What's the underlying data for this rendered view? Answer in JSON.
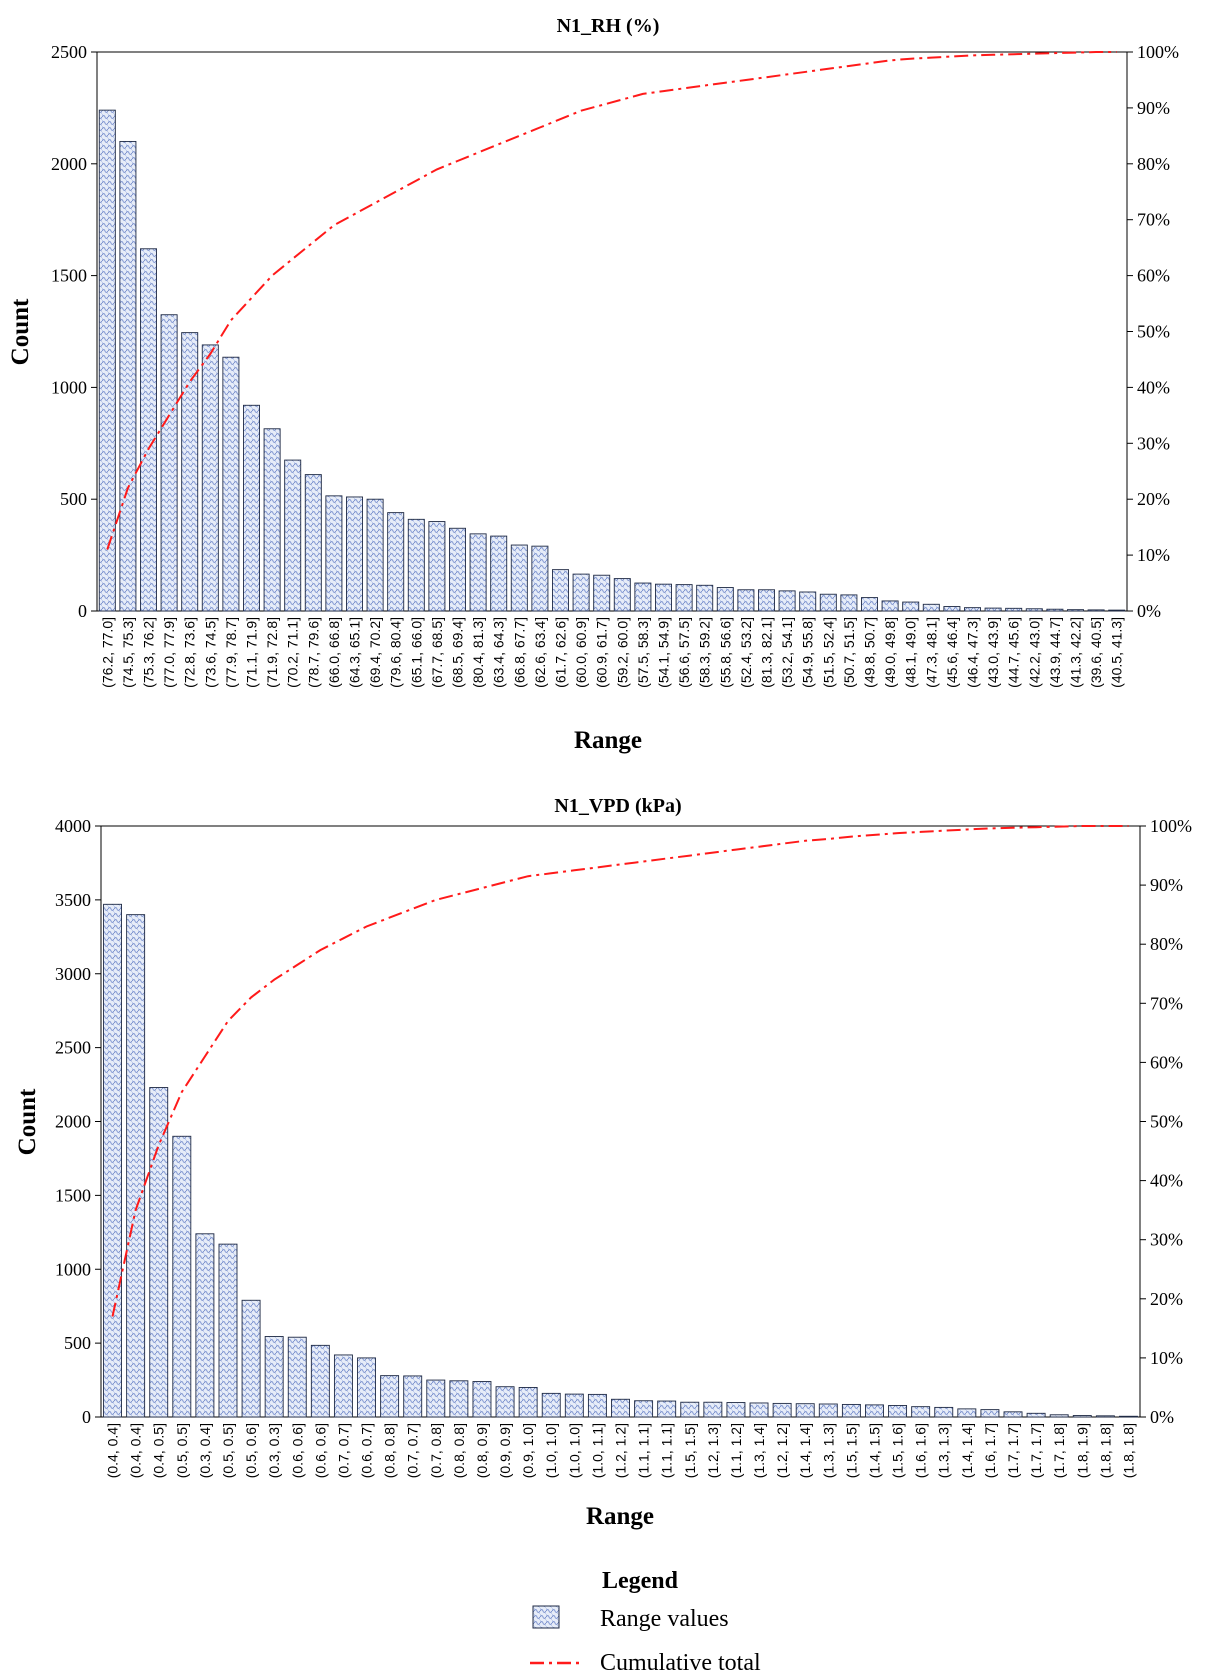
{
  "chart_data": [
    {
      "type": "bar",
      "title": "N1_RH (%)",
      "xlabel": "Range",
      "ylabel": "Count",
      "ylim": [
        0,
        2500
      ],
      "yticks": [
        "0",
        "500",
        "1000",
        "1500",
        "2000",
        "2500"
      ],
      "y2ticks": [
        "0%",
        "10%",
        "20%",
        "30%",
        "40%",
        "50%",
        "60%",
        "70%",
        "80%",
        "90%",
        "100%"
      ],
      "categories": [
        "(76.2, 77.0]",
        "(74.5, 75.3]",
        "(75.3, 76.2]",
        "(77.0, 77.9]",
        "(72.8, 73.6]",
        "(73.6, 74.5]",
        "(77.9, 78.7]",
        "(71.1, 71.9]",
        "(71.9, 72.8]",
        "(70.2, 71.1]",
        "(78.7, 79.6]",
        "(66.0, 66.8]",
        "(64.3, 65.1]",
        "(69.4, 70.2]",
        "(79.6, 80.4]",
        "(65.1, 66.0]",
        "(67.7, 68.5]",
        "(68.5, 69.4]",
        "(80.4, 81.3]",
        "(63.4, 64.3]",
        "(66.8, 67.7]",
        "(62.6, 63.4]",
        "(61.7, 62.6]",
        "(60.0, 60.9]",
        "(60.9, 61.7]",
        "(59.2, 60.0]",
        "(57.5, 58.3]",
        "(54.1, 54.9]",
        "(56.6, 57.5]",
        "(58.3, 59.2]",
        "(55.8, 56.6]",
        "(52.4, 53.2]",
        "(81.3, 82.1]",
        "(53.2, 54.1]",
        "(54.9, 55.8]",
        "(51.5, 52.4]",
        "(50.7, 51.5]",
        "(49.8, 50.7]",
        "(49.0, 49.8]",
        "(48.1, 49.0]",
        "(47.3, 48.1]",
        "(45.6, 46.4]",
        "(46.4, 47.3]",
        "(43.0, 43.9]",
        "(44.7, 45.6]",
        "(42.2, 43.0]",
        "(43.9, 44.7]",
        "(41.3, 42.2]",
        "(39.6, 40.5]",
        "(40.5, 41.3]"
      ],
      "values": [
        2240,
        2100,
        1620,
        1325,
        1245,
        1190,
        1135,
        920,
        815,
        675,
        610,
        515,
        510,
        500,
        440,
        410,
        400,
        370,
        345,
        335,
        295,
        290,
        185,
        165,
        160,
        145,
        125,
        120,
        118,
        115,
        105,
        95,
        95,
        90,
        85,
        75,
        72,
        60,
        45,
        40,
        30,
        20,
        15,
        13,
        12,
        10,
        8,
        6,
        5,
        4
      ],
      "series": [
        {
          "name": "Range values",
          "type": "bar"
        },
        {
          "name": "Cumulative total",
          "type": "line",
          "axis": "right",
          "unit": "%",
          "values": [
            11,
            22,
            29,
            35,
            41,
            46,
            52,
            56,
            60,
            63,
            66,
            69,
            71,
            73,
            75,
            77,
            79,
            80.5,
            82,
            83.5,
            85,
            86.5,
            88,
            89.5,
            90.5,
            91.5,
            92.5,
            93,
            93.5,
            94,
            94.5,
            95,
            95.5,
            96,
            96.5,
            97,
            97.5,
            98,
            98.5,
            98.8,
            99,
            99.2,
            99.4,
            99.5,
            99.6,
            99.7,
            99.8,
            99.9,
            100,
            100
          ]
        }
      ]
    },
    {
      "type": "bar",
      "title": "N1_VPD (kPa)",
      "xlabel": "Range",
      "ylabel": "Count",
      "ylim": [
        0,
        4000
      ],
      "yticks": [
        "0",
        "500",
        "1000",
        "1500",
        "2000",
        "2500",
        "3000",
        "3500",
        "4000"
      ],
      "y2ticks": [
        "0%",
        "10%",
        "20%",
        "30%",
        "40%",
        "50%",
        "60%",
        "70%",
        "80%",
        "90%",
        "100%"
      ],
      "categories": [
        "(0.4, 0.4]",
        "(0.4, 0.4]",
        "(0.4, 0.5]",
        "(0.5, 0.5]",
        "(0.3, 0.4]",
        "(0.5, 0.5]",
        "(0.5, 0.6]",
        "(0.3, 0.3]",
        "(0.6, 0.6]",
        "(0.6, 0.6]",
        "(0.7, 0.7]",
        "(0.6, 0.7]",
        "(0.8, 0.8]",
        "(0.7, 0.7]",
        "(0.7, 0.8]",
        "(0.8, 0.8]",
        "(0.8, 0.9]",
        "(0.9, 0.9]",
        "(0.9, 1.0]",
        "(1.0, 1.0]",
        "(1.0, 1.0]",
        "(1.0, 1.1]",
        "(1.2, 1.2]",
        "(1.1, 1.1]",
        "(1.1, 1.1]",
        "(1.5, 1.5]",
        "(1.2, 1.3]",
        "(1.1, 1.2]",
        "(1.3, 1.4]",
        "(1.2, 1.2]",
        "(1.4, 1.4]",
        "(1.3, 1.3]",
        "(1.5, 1.5]",
        "(1.4, 1.5]",
        "(1.5, 1.6]",
        "(1.6, 1.6]",
        "(1.3, 1.3]",
        "(1.4, 1.4]",
        "(1.6, 1.7]",
        "(1.7, 1.7]",
        "(1.7, 1.7]",
        "(1.7, 1.8]",
        "(1.8, 1.9]",
        "(1.8, 1.8]",
        "(1.8, 1.8]"
      ],
      "values": [
        3470,
        3400,
        2230,
        1900,
        1240,
        1170,
        790,
        545,
        540,
        485,
        420,
        400,
        280,
        278,
        250,
        245,
        240,
        205,
        200,
        160,
        155,
        153,
        120,
        110,
        108,
        100,
        100,
        98,
        95,
        92,
        90,
        88,
        85,
        82,
        78,
        70,
        65,
        55,
        50,
        35,
        25,
        15,
        10,
        8,
        5
      ],
      "series": [
        {
          "name": "Range values",
          "type": "bar"
        },
        {
          "name": "Cumulative total",
          "type": "line",
          "axis": "right",
          "unit": "%",
          "values": [
            17,
            35,
            46,
            55,
            61,
            67,
            71,
            74,
            76.5,
            79,
            81,
            83,
            84.5,
            86,
            87.5,
            88.5,
            89.5,
            90.5,
            91.5,
            92,
            92.5,
            93,
            93.5,
            94,
            94.5,
            95,
            95.5,
            96,
            96.5,
            97,
            97.5,
            97.8,
            98.2,
            98.5,
            98.8,
            99,
            99.2,
            99.4,
            99.6,
            99.7,
            99.8,
            99.9,
            100,
            100,
            100
          ]
        }
      ]
    }
  ],
  "legend": {
    "title": "Legend",
    "items": [
      {
        "label": "Range values",
        "symbol": "bar-hatch"
      },
      {
        "label": "Cumulative total",
        "symbol": "dash-dot-line"
      }
    ]
  },
  "colors": {
    "bar_fill": "#e6ecf8",
    "bar_hatch": "#6f86c8",
    "bar_stroke": "#1f2a44",
    "line": "#ff1a1a",
    "axis": "#000000"
  }
}
